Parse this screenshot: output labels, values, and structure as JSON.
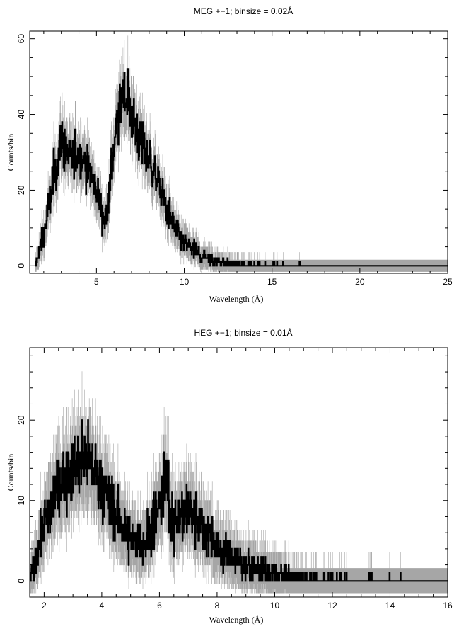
{
  "chart_data": [
    {
      "type": "line",
      "title": "MEG +−1; binsize = 0.02Å",
      "xlabel": "Wavelength (Å)",
      "ylabel": "Counts/bin",
      "xlim": [
        1.2,
        25
      ],
      "ylim": [
        -2,
        62
      ],
      "xticks_major": [
        5,
        10,
        15,
        20,
        25
      ],
      "yticks_major": [
        0,
        20,
        40,
        60
      ],
      "grid": false,
      "series": [
        {
          "style": "histogram with error bars",
          "x": [
            1.5,
            2.0,
            2.5,
            3.0,
            3.5,
            4.0,
            4.5,
            5.0,
            5.5,
            6.0,
            6.5,
            7.0,
            7.5,
            8.0,
            8.5,
            9.0,
            9.5,
            10.0,
            11.0,
            12.0,
            13.0,
            14.0,
            15.0,
            16.0,
            17.0,
            18.0,
            20.0,
            22.0,
            24.0,
            25.0
          ],
          "values": [
            0,
            8,
            22,
            33,
            28,
            30,
            26,
            20,
            11,
            32,
            47,
            40,
            33,
            28,
            22,
            15,
            9,
            6,
            2.5,
            1,
            0.5,
            0.2,
            0.1,
            0.1,
            0,
            0,
            0,
            0,
            0,
            0
          ],
          "color": "#000000",
          "error_color": "#a6a6a6"
        }
      ]
    },
    {
      "type": "line",
      "title": "HEG +−1; binsize = 0.01Å",
      "xlabel": "Wavelength (Å)",
      "ylabel": "Counts/bin",
      "xlim": [
        1.5,
        16
      ],
      "ylim": [
        -2,
        29
      ],
      "xticks_major": [
        2,
        4,
        6,
        8,
        10,
        12,
        14,
        16
      ],
      "yticks_major": [
        0,
        10,
        20
      ],
      "grid": false,
      "series": [
        {
          "style": "histogram with error bars",
          "x": [
            1.5,
            2.0,
            2.5,
            3.0,
            3.5,
            4.0,
            4.5,
            5.0,
            5.5,
            6.0,
            6.2,
            6.5,
            7.0,
            7.5,
            8.0,
            8.5,
            9.0,
            9.5,
            10.0,
            11.0,
            12.0,
            13.0,
            14.0,
            15.0,
            16.0
          ],
          "values": [
            0,
            7,
            12,
            14,
            15,
            12,
            8,
            5,
            5,
            9,
            12,
            7,
            9,
            7,
            4,
            3,
            2,
            1.5,
            0.8,
            0.4,
            0.2,
            0.1,
            0.05,
            0,
            0
          ],
          "color": "#000000",
          "error_color": "#a6a6a6"
        }
      ]
    }
  ]
}
